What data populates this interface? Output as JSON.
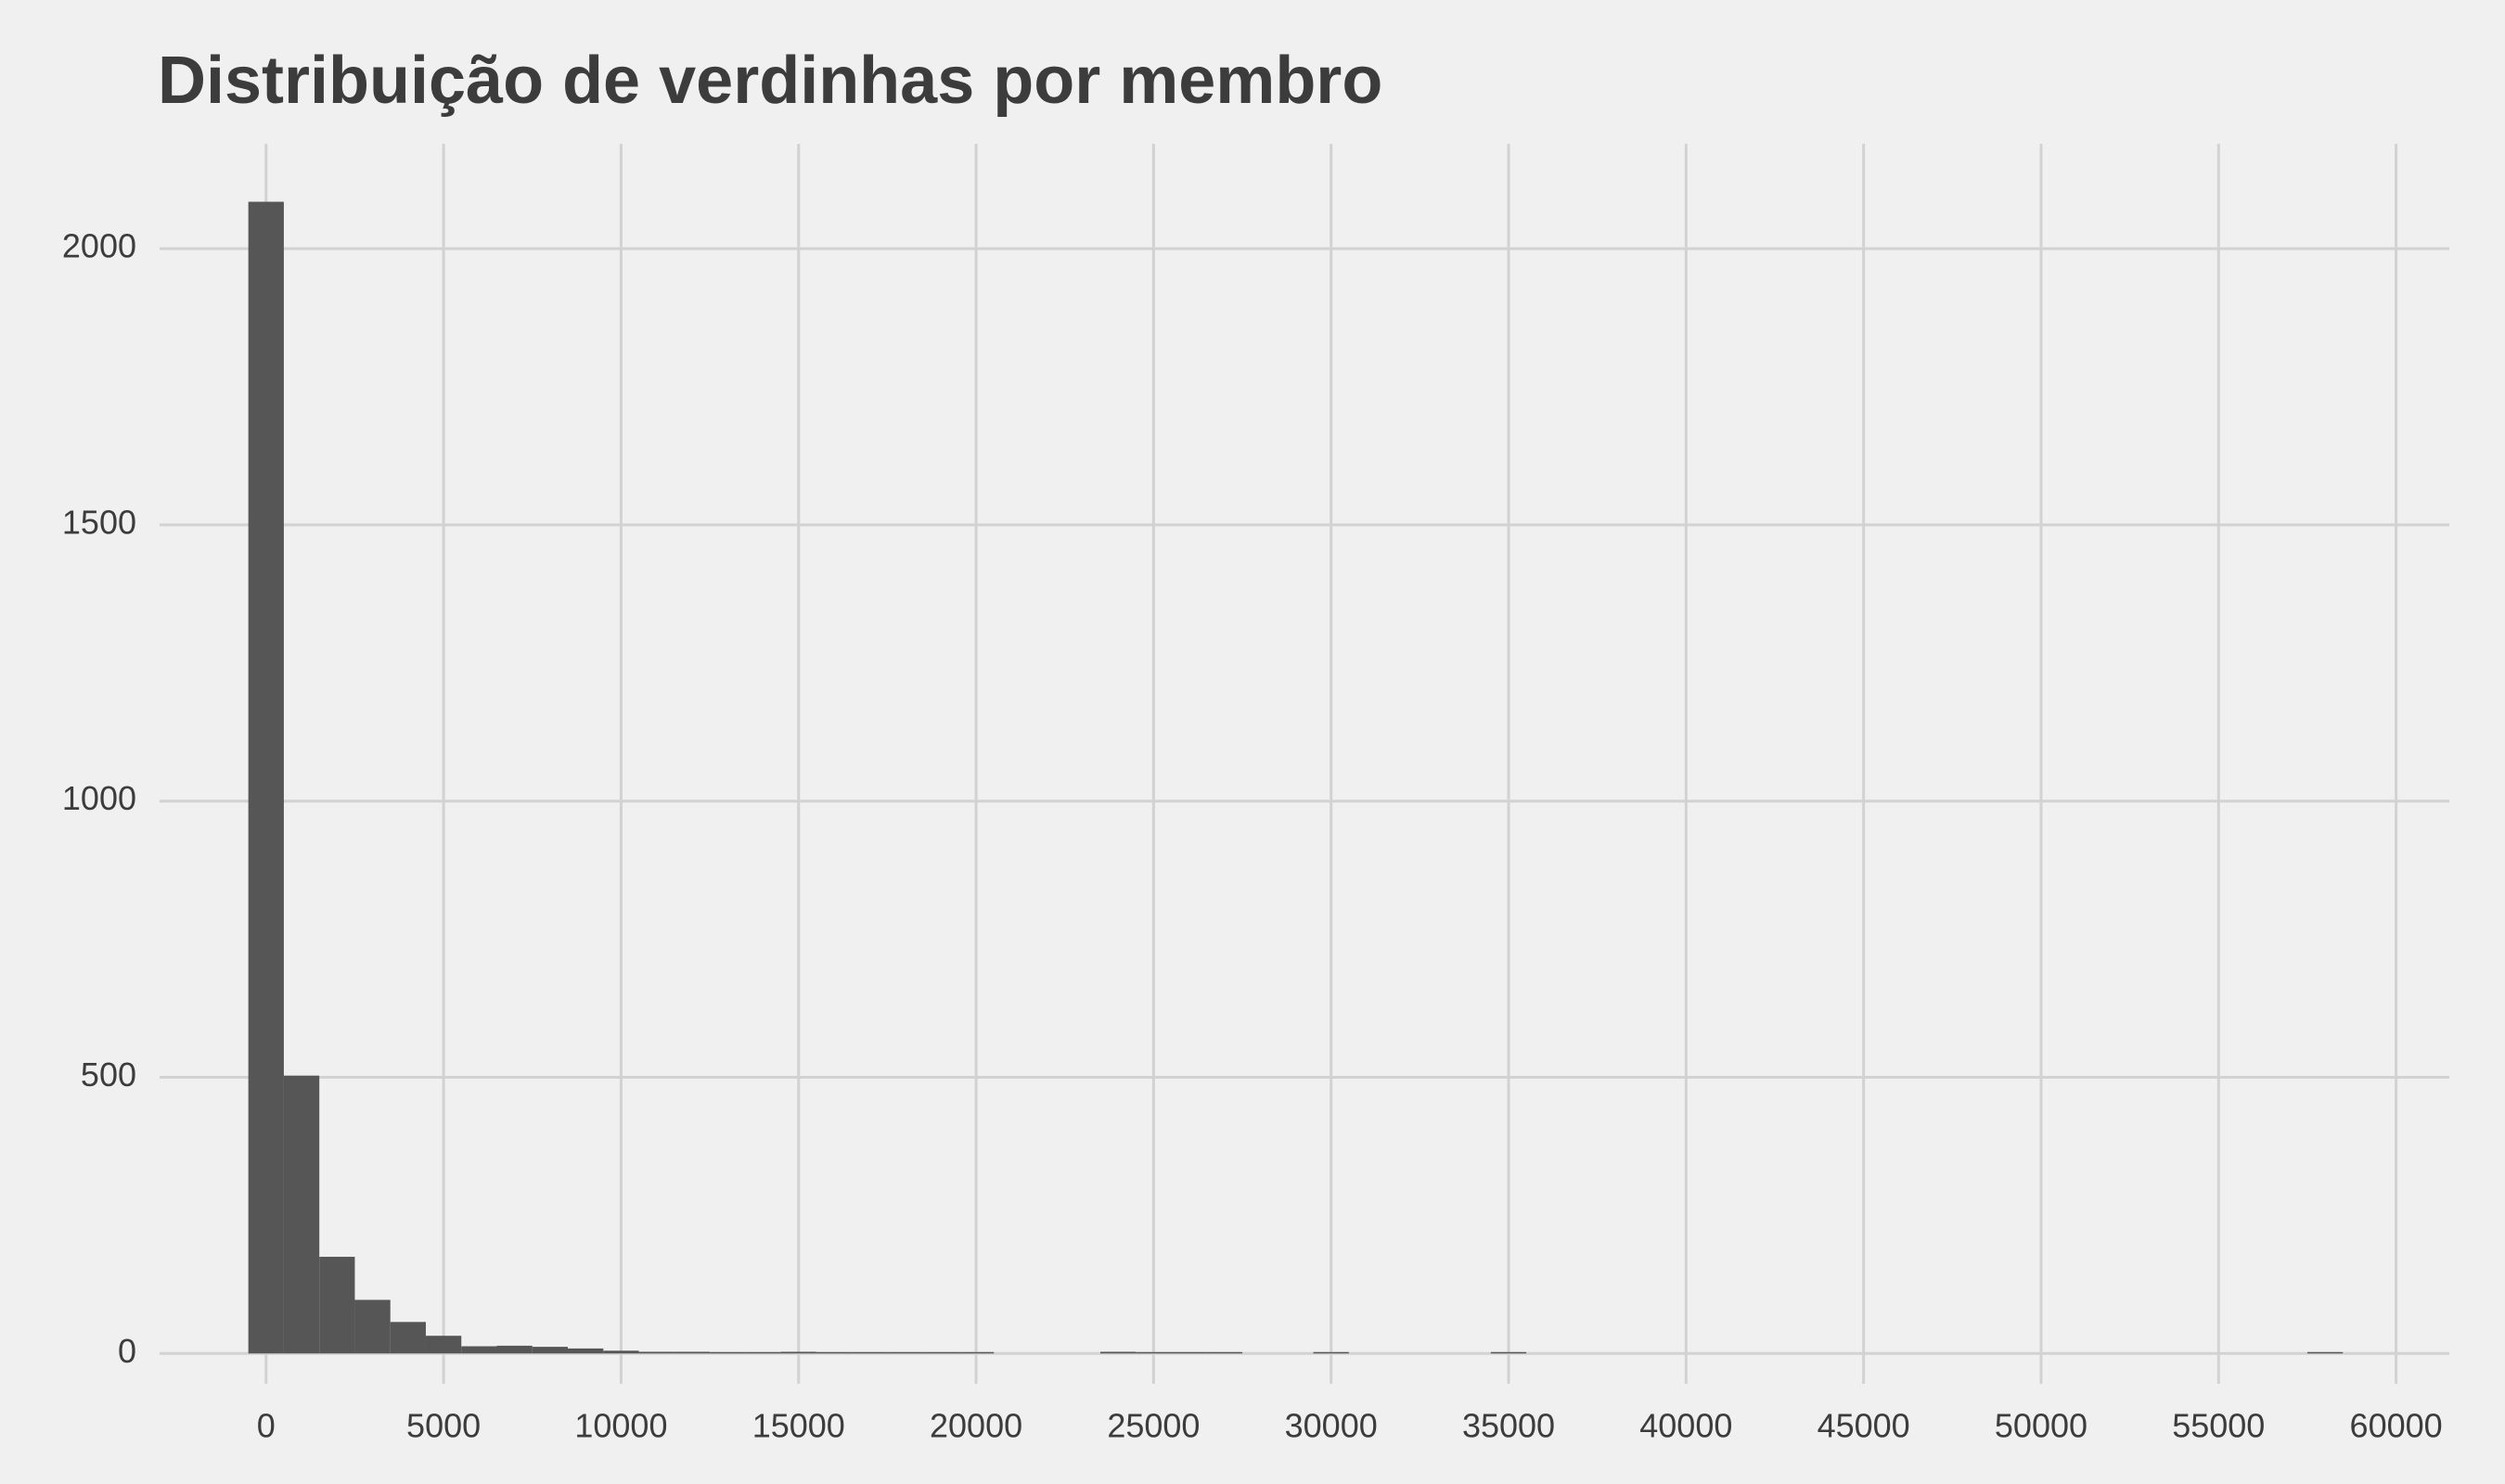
{
  "chart_data": {
    "type": "bar",
    "subtype": "histogram",
    "title": "Distribuição de verdinhas por membro",
    "xlabel": "",
    "ylabel": "",
    "xlim": [
      -3000,
      61500
    ],
    "ylim": [
      -55,
      2190
    ],
    "grid": "on",
    "legend": "none",
    "bar_color": "#565656",
    "background_color": "#f0f0f0",
    "grid_color": "#d2d2d2",
    "text_color": "#3c3c3c",
    "x_ticks": [
      0,
      5000,
      10000,
      15000,
      20000,
      25000,
      30000,
      35000,
      40000,
      45000,
      50000,
      55000,
      60000
    ],
    "x_tick_labels": [
      "0",
      "5000",
      "10000",
      "15000",
      "20000",
      "25000",
      "30000",
      "35000",
      "40000",
      "45000",
      "50000",
      "55000",
      "60000"
    ],
    "y_ticks": [
      0,
      500,
      1000,
      1500,
      2000
    ],
    "y_tick_labels": [
      "0",
      "500",
      "1000",
      "1500",
      "2000"
    ],
    "bin_width": 1000,
    "bins": [
      {
        "x0": -500,
        "x1": 500,
        "count": 2085
      },
      {
        "x0": 500,
        "x1": 1500,
        "count": 503
      },
      {
        "x0": 1500,
        "x1": 2500,
        "count": 175
      },
      {
        "x0": 2500,
        "x1": 3500,
        "count": 97
      },
      {
        "x0": 3500,
        "x1": 4500,
        "count": 57
      },
      {
        "x0": 4500,
        "x1": 5500,
        "count": 32
      },
      {
        "x0": 5500,
        "x1": 6500,
        "count": 13
      },
      {
        "x0": 6500,
        "x1": 7500,
        "count": 14
      },
      {
        "x0": 7500,
        "x1": 8500,
        "count": 12
      },
      {
        "x0": 8500,
        "x1": 9500,
        "count": 9
      },
      {
        "x0": 9500,
        "x1": 10500,
        "count": 5
      },
      {
        "x0": 10500,
        "x1": 11500,
        "count": 3
      },
      {
        "x0": 11500,
        "x1": 12500,
        "count": 3
      },
      {
        "x0": 12500,
        "x1": 13500,
        "count": 2
      },
      {
        "x0": 13500,
        "x1": 14500,
        "count": 1
      },
      {
        "x0": 14500,
        "x1": 15500,
        "count": 3
      },
      {
        "x0": 15500,
        "x1": 16500,
        "count": 1
      },
      {
        "x0": 16500,
        "x1": 17500,
        "count": 1
      },
      {
        "x0": 17500,
        "x1": 18500,
        "count": 1
      },
      {
        "x0": 18500,
        "x1": 19500,
        "count": 1
      },
      {
        "x0": 19500,
        "x1": 20500,
        "count": 1
      },
      {
        "x0": 23500,
        "x1": 24500,
        "count": 3
      },
      {
        "x0": 24500,
        "x1": 25500,
        "count": 1
      },
      {
        "x0": 25500,
        "x1": 26500,
        "count": 1
      },
      {
        "x0": 26500,
        "x1": 27500,
        "count": 1
      },
      {
        "x0": 29500,
        "x1": 30500,
        "count": 1
      },
      {
        "x0": 34500,
        "x1": 35500,
        "count": 1
      },
      {
        "x0": 57500,
        "x1": 58500,
        "count": 1
      }
    ]
  }
}
